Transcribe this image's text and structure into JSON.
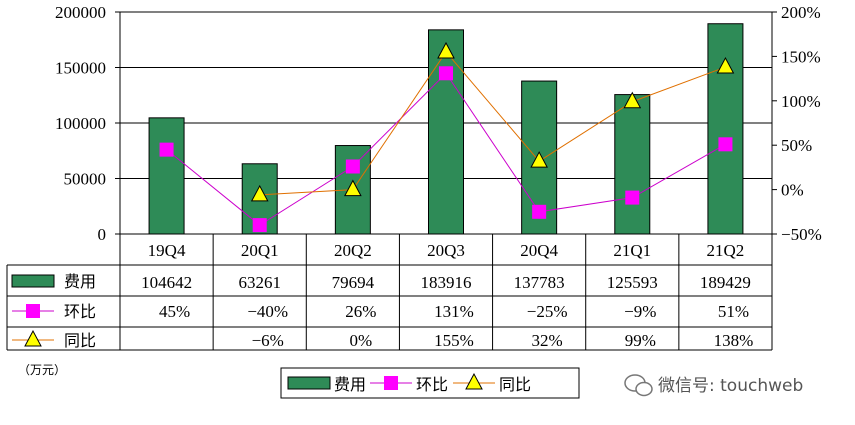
{
  "chart_data": {
    "type": "bar",
    "categories": [
      "19Q4",
      "20Q1",
      "20Q2",
      "20Q3",
      "20Q4",
      "21Q1",
      "21Q2"
    ],
    "bar_series": {
      "name": "费用",
      "values": [
        104642,
        63261,
        79694,
        183916,
        137783,
        125593,
        189429
      ],
      "color": "#2e8b57"
    },
    "line_series": [
      {
        "name": "环比",
        "values": [
          45,
          -40,
          26,
          131,
          -25,
          -9,
          51
        ],
        "labels": [
          "45%",
          "−40%",
          "26%",
          "131%",
          "−25%",
          "−9%",
          "51%"
        ],
        "color": "#cc00cc",
        "marker_color": "#ff00ff",
        "marker": "square"
      },
      {
        "name": "同比",
        "values": [
          null,
          -6,
          0,
          155,
          32,
          99,
          138
        ],
        "labels": [
          "",
          "−6%",
          "0%",
          "155%",
          "32%",
          "99%",
          "138%"
        ],
        "color": "#e07000",
        "marker_color": "#ffff00",
        "marker": "triangle"
      }
    ],
    "ylim_left": [
      0,
      200000
    ],
    "yticks_left": [
      "0",
      "50000",
      "100000",
      "150000",
      "200000"
    ],
    "ylim_right": [
      -50,
      200
    ],
    "yticks_right": [
      "−50%",
      "0%",
      "50%",
      "100%",
      "150%",
      "200%"
    ],
    "unit_label": "（万元）",
    "legend_position": "bottom",
    "grid": true
  },
  "watermark": "微信号: touchweb"
}
